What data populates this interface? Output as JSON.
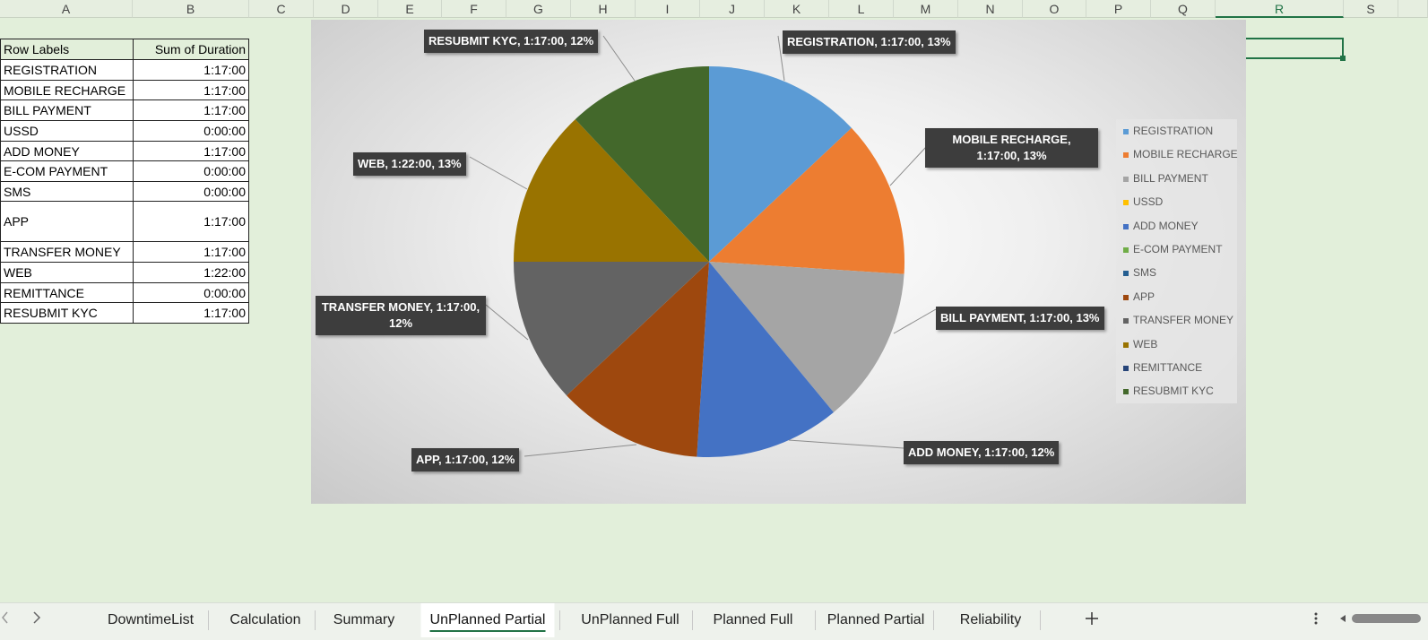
{
  "columns": [
    "A",
    "B",
    "C",
    "D",
    "E",
    "F",
    "G",
    "H",
    "I",
    "J",
    "K",
    "L",
    "M",
    "N",
    "O",
    "P",
    "Q",
    "R",
    "S"
  ],
  "table": {
    "header": [
      "Row Labels",
      "Sum of Duration"
    ],
    "rows": [
      [
        "REGISTRATION",
        "1:17:00"
      ],
      [
        "MOBILE RECHARGE",
        "1:17:00"
      ],
      [
        "BILL PAYMENT",
        "1:17:00"
      ],
      [
        "USSD",
        "0:00:00"
      ],
      [
        "ADD MONEY",
        "1:17:00"
      ],
      [
        "E-COM PAYMENT",
        "0:00:00"
      ],
      [
        "SMS",
        "0:00:00"
      ],
      [
        "APP",
        "1:17:00"
      ],
      [
        "TRANSFER MONEY",
        "1:17:00"
      ],
      [
        "WEB",
        "1:22:00"
      ],
      [
        "REMITTANCE",
        "0:00:00"
      ],
      [
        "RESUBMIT KYC",
        "1:17:00"
      ]
    ]
  },
  "chart_data": {
    "type": "pie",
    "categories": [
      "REGISTRATION",
      "MOBILE RECHARGE",
      "BILL PAYMENT",
      "USSD",
      "ADD MONEY",
      "E-COM PAYMENT",
      "SMS",
      "APP",
      "TRANSFER MONEY",
      "WEB",
      "REMITTANCE",
      "RESUBMIT KYC"
    ],
    "values": [
      13,
      13,
      13,
      0,
      12,
      0,
      0,
      12,
      12,
      13,
      0,
      12
    ],
    "value_labels": [
      "REGISTRATION, 1:17:00, 13%",
      "MOBILE RECHARGE, 1:17:00, 13%",
      "BILL PAYMENT, 1:17:00, 13%",
      null,
      "ADD MONEY, 1:17:00, 12%",
      null,
      null,
      "APP, 1:17:00, 12%",
      "TRANSFER MONEY, 1:17:00, 12%",
      "WEB, 1:22:00, 13%",
      null,
      "RESUBMIT KYC, 1:17:00, 12%"
    ],
    "colors": [
      "#5b9bd5",
      "#ed7d31",
      "#a5a5a5",
      "#ffc000",
      "#4472c4",
      "#70ad47",
      "#255e91",
      "#9e480e",
      "#636363",
      "#997300",
      "#264478",
      "#43682b"
    ],
    "legend": "right"
  },
  "sheet_tabs": [
    "DowntimeList",
    "Calculation",
    "Summary",
    "UnPlanned Partial",
    "UnPlanned Full",
    "Planned Full",
    "Planned Partial",
    "Reliability"
  ],
  "active_tab": 3
}
